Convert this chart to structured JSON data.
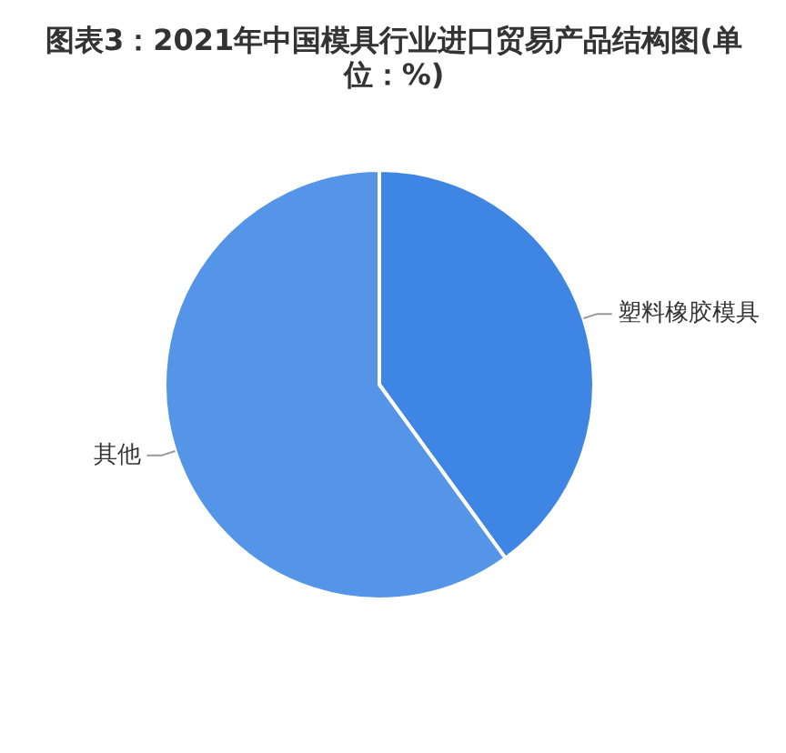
{
  "chart_data": {
    "type": "pie",
    "title": "图表3：2021年中国模具行业进口贸易产品结构图(单位：%)",
    "categories": [
      "塑料橡胶模具",
      "其他"
    ],
    "values": [
      40,
      60
    ],
    "colors": [
      "#3f85e4",
      "#5495e7"
    ]
  }
}
